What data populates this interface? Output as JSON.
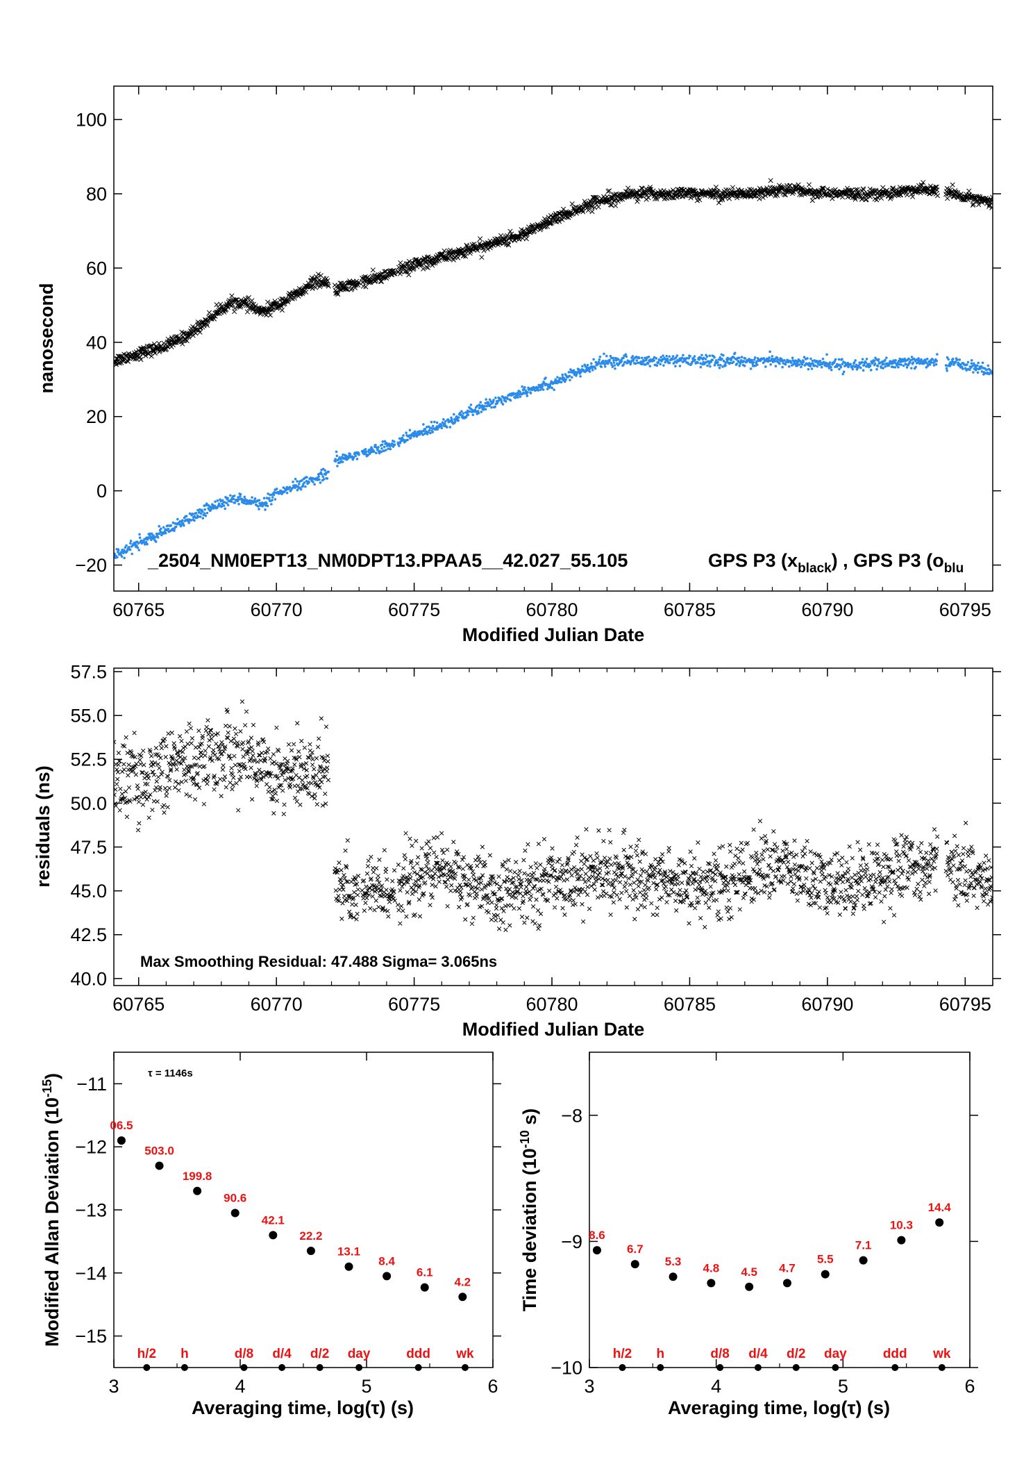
{
  "colors": {
    "black": "#000000",
    "blue": "#2a8bea",
    "red": "#ee1111",
    "axis": "#000000"
  },
  "chart_data": [
    {
      "id": "top",
      "type": "scatter",
      "xlabel": "Modified Julian Date",
      "ylabel": "nanosecond",
      "xlim": [
        60764.1,
        60796.0
      ],
      "ylim": [
        -27,
        109
      ],
      "xticks": [
        60765,
        60770,
        60775,
        60780,
        60785,
        60790,
        60795
      ],
      "yticks": [
        -20,
        0,
        20,
        40,
        60,
        80,
        100
      ],
      "yticklabels": [
        "−20",
        "0",
        "20",
        "40",
        "60",
        "80",
        "100"
      ],
      "annotation_left": "_2504_NM0EPT13_NM0DPT13.PPAA5__42.027_55.105",
      "annotation_right": {
        "a": "GPS P3 (x",
        "a_sub": "black",
        "b": ")  ,  GPS P3 (o",
        "b_sub": "blu"
      },
      "series": [
        {
          "marker": "x",
          "color": "#000000",
          "gaps": [
            [
              60771.9,
              60772.1
            ],
            [
              60773.0,
              60773.1
            ],
            [
              60774.3,
              60774.4
            ],
            [
              60794.0,
              60794.3
            ]
          ],
          "x": [
            60764.1,
            60765,
            60766,
            60766.8,
            60767.5,
            60768,
            60768.5,
            60769,
            60769.5,
            60770,
            60770.5,
            60771,
            60771.5,
            60771.9,
            60772.1,
            60773,
            60774,
            60775,
            60776,
            60777,
            60778,
            60779,
            60780,
            60781,
            60782,
            60783,
            60784,
            60785,
            60786,
            60787,
            60788,
            60789,
            60790,
            60791,
            60792,
            60793,
            60794,
            60795,
            60796
          ],
          "y": [
            35,
            37,
            39,
            42,
            46,
            49,
            51,
            50,
            48,
            50,
            52,
            54,
            57,
            55,
            54,
            56,
            58,
            61,
            63,
            65,
            67,
            69,
            73,
            76,
            79,
            80,
            80,
            80,
            80,
            80,
            81,
            81,
            80,
            80,
            80,
            81,
            81,
            79,
            78
          ]
        },
        {
          "marker": "dot",
          "color": "#2a8bea",
          "gaps": [
            [
              60771.9,
              60772.1
            ],
            [
              60773.0,
              60773.1
            ],
            [
              60774.3,
              60774.4
            ],
            [
              60794.0,
              60794.3
            ]
          ],
          "x": [
            60764.1,
            60765,
            60766,
            60767,
            60768,
            60768.8,
            60769.5,
            60770,
            60771,
            60771.9,
            60772.1,
            60773,
            60774,
            60775,
            60776,
            60777,
            60778,
            60779,
            60780,
            60781,
            60782,
            60782.5,
            60784,
            60786,
            60788,
            60790,
            60792,
            60794,
            60795,
            60796
          ],
          "y": [
            -18,
            -14,
            -11,
            -7,
            -3,
            -2,
            -4,
            -1,
            2,
            5,
            8,
            10,
            12,
            15,
            18,
            21,
            24,
            27,
            29,
            32,
            35,
            35,
            35,
            35,
            35,
            34,
            34,
            35,
            34,
            32
          ]
        }
      ]
    },
    {
      "id": "residuals",
      "type": "scatter",
      "xlabel": "Modified Julian Date",
      "ylabel": "residuals (ns)",
      "xlim": [
        60764.1,
        60796.0
      ],
      "ylim": [
        39.6,
        57.7
      ],
      "xticks": [
        60765,
        60770,
        60775,
        60780,
        60785,
        60790,
        60795
      ],
      "yticks": [
        40.0,
        42.5,
        45.0,
        47.5,
        50.0,
        52.5,
        55.0,
        57.5
      ],
      "yticklabels": [
        "40.0",
        "42.5",
        "45.0",
        "47.5",
        "50.0",
        "52.5",
        "55.0",
        "57.5"
      ],
      "annotation": "Max Smoothing Residual: 47.488  Sigma= 3.065ns",
      "series": [
        {
          "marker": "x",
          "color": "#000000",
          "gaps": [
            [
              60771.9,
              60772.1
            ],
            [
              60773.0,
              60773.1
            ],
            [
              60774.3,
              60774.4
            ],
            [
              60794.0,
              60794.3
            ]
          ],
          "x": [
            60764.1,
            60765,
            60766,
            60767,
            60768,
            60769,
            60770,
            60771,
            60771.9,
            60772.1,
            60774,
            60776,
            60778,
            60780,
            60782,
            60784,
            60786,
            60788,
            60790,
            60792,
            60794,
            60796
          ],
          "y": [
            51.5,
            51.3,
            52.0,
            52.4,
            52.8,
            52.7,
            51.8,
            51.5,
            52.2,
            45.2,
            45.0,
            46.3,
            44.6,
            45.7,
            46.0,
            45.6,
            45.3,
            46.6,
            45.2,
            46.0,
            46.6,
            45.4
          ]
        }
      ]
    },
    {
      "id": "mdev",
      "type": "scatter",
      "xlabel": "Averaging time, log(τ) (s)",
      "ylabel": "Modified Allan Deviation (10",
      "ylabel_sup": "-15",
      "ylabel_tail": ")",
      "xlim": [
        3,
        6
      ],
      "ylim": [
        -15.5,
        -10.5
      ],
      "xticks": [
        3,
        4,
        5,
        6
      ],
      "yticks": [
        -15,
        -14,
        -13,
        -12,
        -11
      ],
      "yticklabels": [
        "−15",
        "−14",
        "−13",
        "−12",
        "−11"
      ],
      "annotation": "τ = 1146s",
      "x": [
        3.06,
        3.36,
        3.66,
        3.96,
        4.26,
        4.56,
        4.86,
        5.16,
        5.46,
        5.76
      ],
      "y": [
        -11.9,
        -12.3,
        -12.7,
        -13.05,
        -13.4,
        -13.65,
        -13.9,
        -14.05,
        -14.23,
        -14.38
      ],
      "point_labels": [
        "06.5",
        "503.0",
        "199.8",
        "90.6",
        "42.1",
        "22.2",
        "13.1",
        "8.4",
        "6.1",
        "4.2"
      ],
      "markers": [
        {
          "x": 3.26,
          "label": "h/2"
        },
        {
          "x": 3.56,
          "label": "h"
        },
        {
          "x": 4.03,
          "label": "d/8"
        },
        {
          "x": 4.33,
          "label": "d/4"
        },
        {
          "x": 4.63,
          "label": "d/2"
        },
        {
          "x": 4.94,
          "label": "day"
        },
        {
          "x": 5.41,
          "label": "ddd"
        },
        {
          "x": 5.78,
          "label": "wk"
        }
      ]
    },
    {
      "id": "tdev",
      "type": "scatter",
      "xlabel": "Averaging time, log(τ) (s)",
      "ylabel": "Time deviation (10",
      "ylabel_sup": "-10",
      "ylabel_tail": " s)",
      "xlim": [
        3,
        6
      ],
      "ylim": [
        -10,
        -7.5
      ],
      "xticks": [
        3,
        4,
        5,
        6
      ],
      "yticks": [
        -10,
        -9,
        -8
      ],
      "yticklabels": [
        "−10",
        "−9",
        "−8"
      ],
      "x": [
        3.06,
        3.36,
        3.66,
        3.96,
        4.26,
        4.56,
        4.86,
        5.16,
        5.46,
        5.76
      ],
      "y": [
        -9.07,
        -9.18,
        -9.28,
        -9.33,
        -9.36,
        -9.33,
        -9.26,
        -9.15,
        -8.99,
        -8.85
      ],
      "point_labels": [
        "8.6",
        "6.7",
        "5.3",
        "4.8",
        "4.5",
        "4.7",
        "5.5",
        "7.1",
        "10.3",
        "14.4"
      ],
      "markers": [
        {
          "x": 3.26,
          "label": "h/2"
        },
        {
          "x": 3.56,
          "label": "h"
        },
        {
          "x": 4.03,
          "label": "d/8"
        },
        {
          "x": 4.33,
          "label": "d/4"
        },
        {
          "x": 4.63,
          "label": "d/2"
        },
        {
          "x": 4.94,
          "label": "day"
        },
        {
          "x": 5.41,
          "label": "ddd"
        },
        {
          "x": 5.78,
          "label": "wk"
        }
      ]
    }
  ]
}
